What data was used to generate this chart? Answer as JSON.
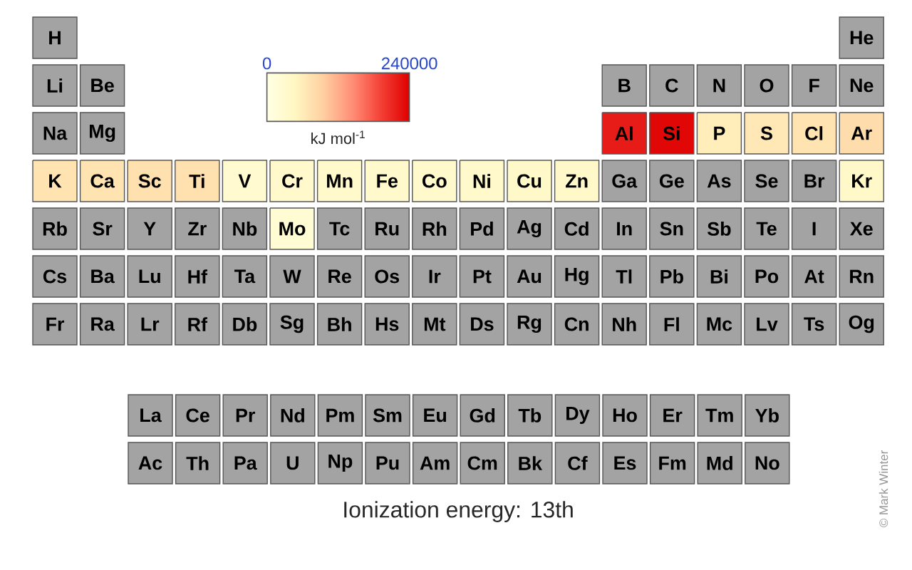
{
  "chart_data": [
    {
      "type": "other",
      "cell_labels": [
        [
          "H",
          null,
          null,
          null,
          null,
          null,
          null,
          null,
          null,
          null,
          null,
          null,
          null,
          null,
          null,
          null,
          null,
          "He"
        ],
        [
          "Li",
          "Be",
          null,
          null,
          null,
          null,
          null,
          null,
          null,
          null,
          null,
          null,
          "B",
          "C",
          "N",
          "O",
          "F",
          "Ne"
        ]
      ]
    },
    {
      "type": "heatmap",
      "title": "Ionization energy: 13th",
      "clabel": "kJ mol$^{-1}$",
      "clim": [
        0,
        240000
      ],
      "cticks": [
        0,
        240000
      ],
      "annotations": [
        "© Mark Winter"
      ],
      "categories": [
        null,
        null,
        null,
        null,
        null,
        null,
        null,
        null,
        null,
        null,
        null,
        null,
        null,
        null,
        null,
        null,
        null,
        null
      ],
      "y_categories": [
        null,
        null,
        null
      ],
      "cells": [
        [
          null,
          null,
          null,
          null,
          null,
          null,
          null,
          null,
          null,
          null,
          null,
          null,
          220000,
          235000,
          60000,
          65000,
          70000,
          80000
        ],
        [
          70000,
          70000,
          75000,
          75000,
          30000,
          35000,
          35000,
          35000,
          35000,
          35000,
          40000,
          40000,
          null,
          null,
          null,
          null,
          null,
          40000
        ],
        [
          null,
          null,
          null,
          null,
          null,
          25000,
          null,
          null,
          null,
          null,
          null,
          null,
          null,
          null,
          null,
          null,
          null,
          null
        ]
      ],
      "cell_labels": [
        [
          "Na",
          "Mg",
          null,
          null,
          null,
          null,
          null,
          null,
          null,
          null,
          null,
          null,
          "Al",
          "Si",
          "P",
          "S",
          "Cl",
          "Ar"
        ],
        [
          "K",
          "Ca",
          "Sc",
          "Ti",
          "V",
          "Cr",
          "Mn",
          "Fe",
          "Co",
          "Ni",
          "Cu",
          "Zn",
          "Ga",
          "Ge",
          "As",
          "Se",
          "Br",
          "Kr"
        ],
        [
          "Rb",
          "Sr",
          "Y",
          "Zr",
          "Nb",
          "Mo",
          "Tc",
          "Ru",
          "Rh",
          "Pd",
          "Ag",
          "Cd",
          "In",
          "Sn",
          "Sb",
          "Te",
          "I",
          "Xe"
        ]
      ]
    },
    {
      "type": "other",
      "cell_labels": [
        [
          "Cs",
          "Ba",
          "Lu",
          "Hf",
          "Ta",
          "W",
          "Re",
          "Os",
          "Ir",
          "Pt",
          "Au",
          "Hg",
          "Tl",
          "Pb",
          "Bi",
          "Po",
          "At",
          "Rn"
        ],
        [
          "Fr",
          "Ra",
          "Lr",
          "Rf",
          "Db",
          "Sg",
          "Bh",
          "Hs",
          "Mt",
          "Ds",
          "Rg",
          "Cn",
          "Nh",
          "Fl",
          "Mc",
          "Lv",
          "Ts",
          "Og"
        ]
      ]
    },
    {
      "type": "other",
      "cell_labels": [
        [
          "La",
          "Ce",
          "Pr",
          "Nd",
          "Pm",
          "Sm",
          "Eu",
          "Gd",
          "Tb",
          "Dy",
          "Ho",
          "Er",
          "Tm",
          "Yb"
        ],
        [
          "Ac",
          "Th",
          "Pa",
          "U",
          "Np",
          "Pu",
          "Am",
          "Cm",
          "Bk",
          "Cf",
          "Es",
          "Fm",
          "Md",
          "No"
        ]
      ]
    }
  ]
}
